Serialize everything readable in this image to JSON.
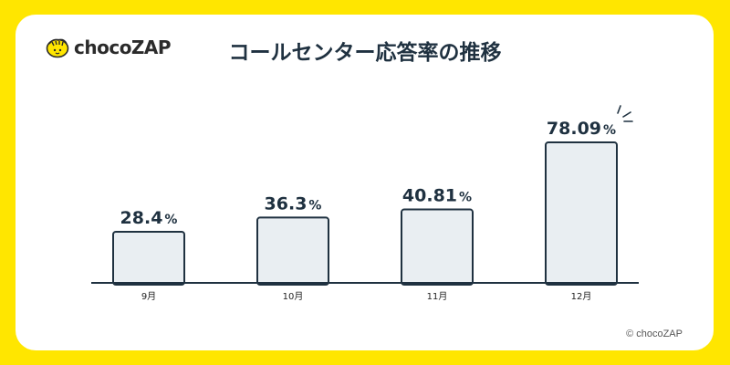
{
  "brand": {
    "name": "chocoZAP",
    "logo_icon": "chocozap-mascot-icon"
  },
  "title": "コールセンター応答率の推移",
  "copyright": "© chocoZAP",
  "colors": {
    "background": "#ffe600",
    "card": "#ffffff",
    "bar_fill": "#e9eef2",
    "bar_stroke": "#1f3140",
    "text": "#1f3140"
  },
  "chart_data": {
    "type": "bar",
    "title": "コールセンター応答率の推移",
    "categories": [
      "9月",
      "10月",
      "11月",
      "12月"
    ],
    "values": [
      28.4,
      36.3,
      40.81,
      78.09
    ],
    "value_labels": [
      "28.4",
      "36.3",
      "40.81",
      "78.09"
    ],
    "unit": "%",
    "ylim": [
      0,
      100
    ],
    "grid": false,
    "legend": "none",
    "highlight": "12月"
  }
}
